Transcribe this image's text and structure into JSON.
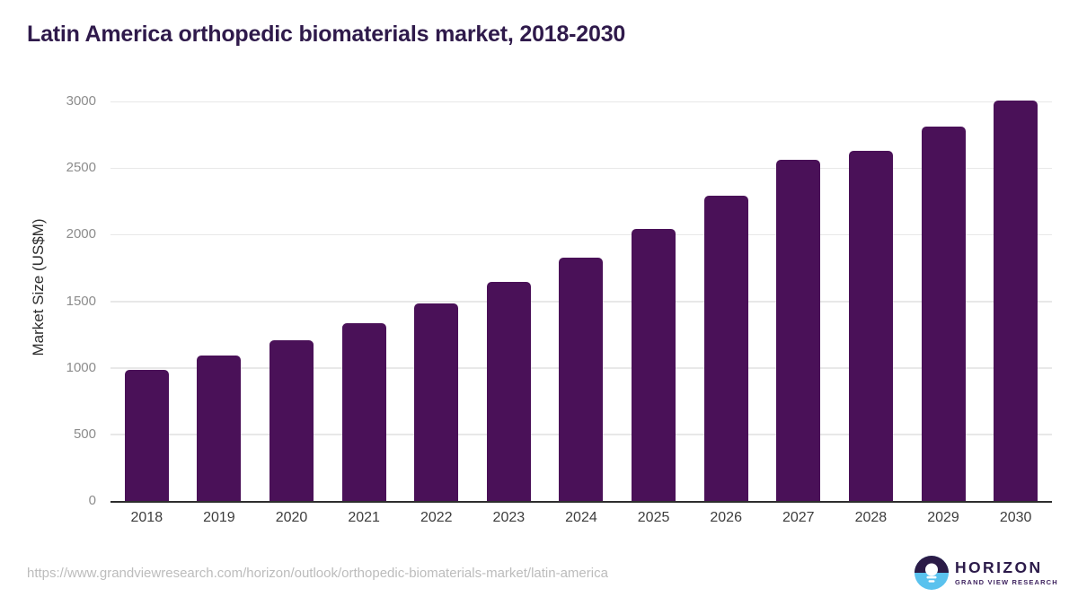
{
  "chart_data": {
    "type": "bar",
    "title": "Latin America orthopedic biomaterials market, 2018-2030",
    "ylabel": "Market Size (US$M)",
    "xlabel": "",
    "categories": [
      "2018",
      "2019",
      "2020",
      "2021",
      "2022",
      "2023",
      "2024",
      "2025",
      "2026",
      "2027",
      "2028",
      "2029",
      "2030"
    ],
    "values": [
      985,
      1090,
      1205,
      1335,
      1480,
      1645,
      1830,
      2045,
      2290,
      2565,
      2630,
      2810,
      3010
    ],
    "yticks": [
      0,
      500,
      1000,
      1500,
      2000,
      2500,
      3000
    ],
    "ylim": [
      0,
      3000
    ],
    "grid": "horizontal",
    "legend": "none",
    "bar_color": "#4a1158"
  },
  "colors": {
    "title_text": "#2f1a4b",
    "bar_purple": "#4a1158",
    "gridline": "#e8e8e8",
    "axis_line": "#2e2e2e",
    "ytick_text": "#8c8c8c",
    "xtick_text": "#3d3d3d",
    "url_text": "#bcbcbc",
    "logo_dark": "#2b1b47",
    "logo_blue": "#5ac2ee"
  },
  "footer": {
    "source_url": "https://www.grandviewresearch.com/horizon/outlook/orthopedic-biomaterials-market/latin-america",
    "logo": {
      "title": "HORIZON",
      "subtitle": "GRAND VIEW RESEARCH"
    }
  }
}
